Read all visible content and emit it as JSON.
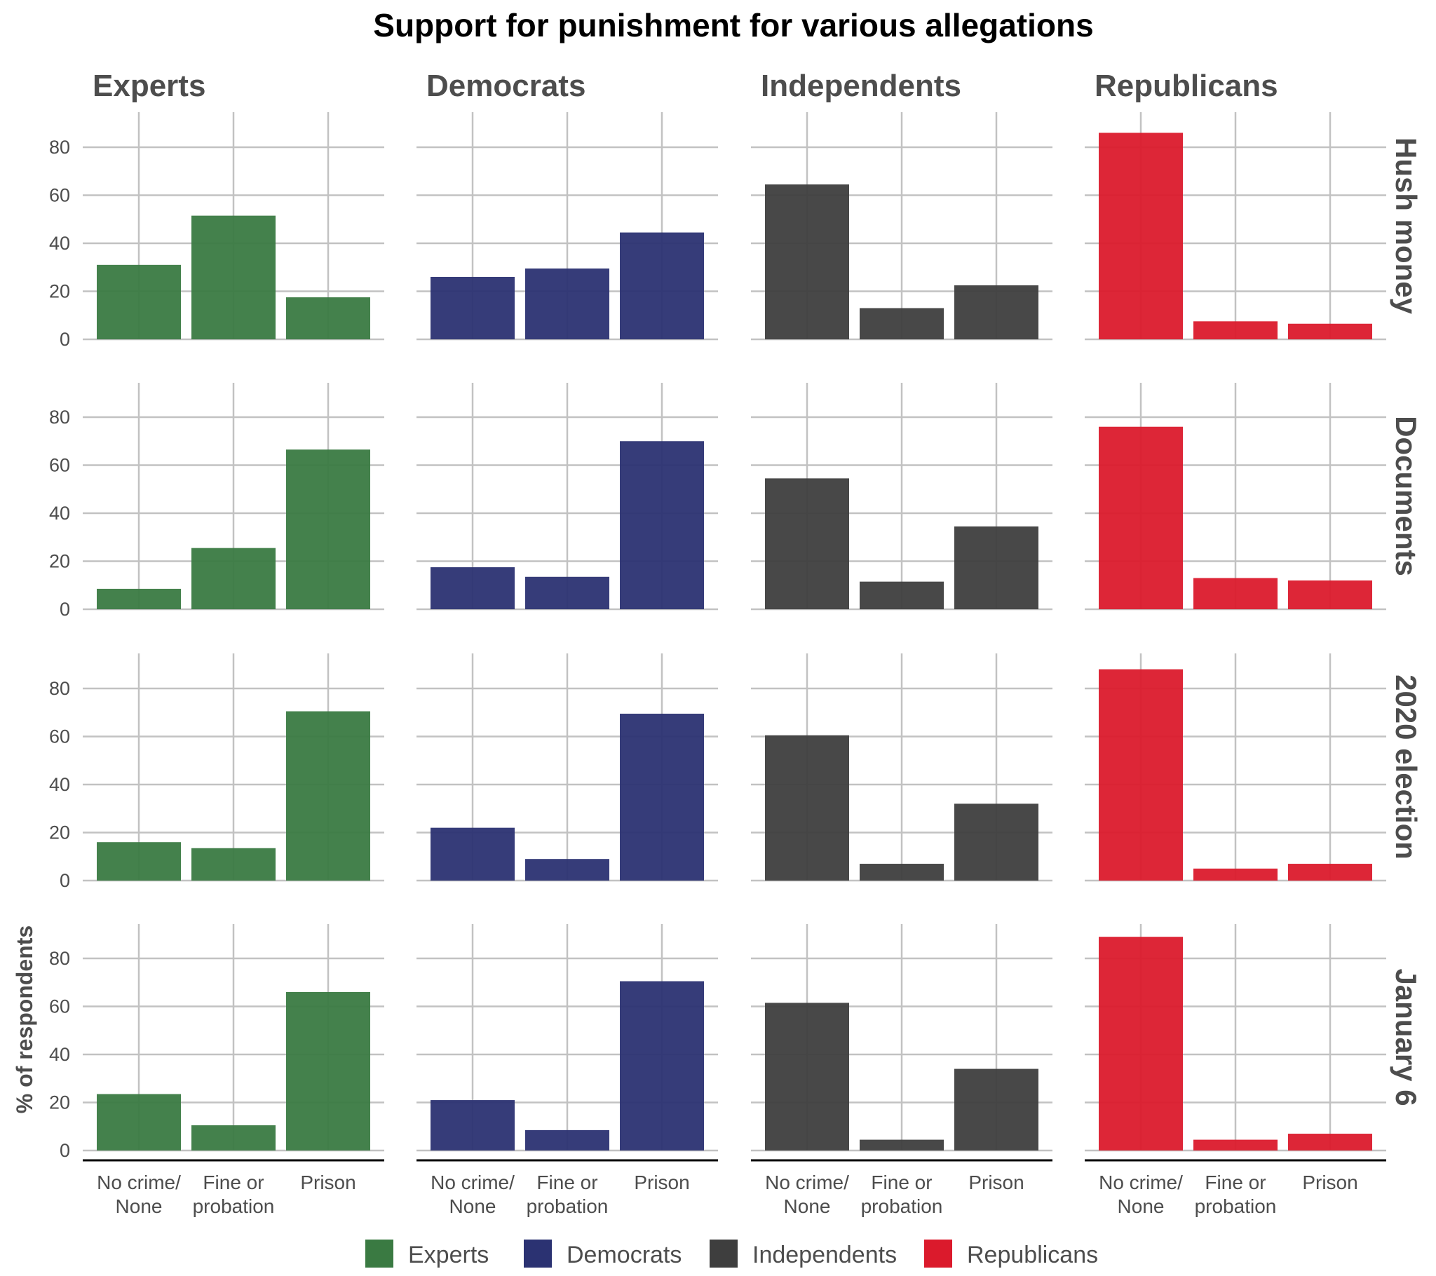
{
  "chart_data": {
    "type": "bar",
    "title": "Support for punishment for various allegations",
    "ylabel": "% of respondents",
    "xlabel": "",
    "ylim": [
      0,
      94
    ],
    "yticks": [
      0,
      20,
      40,
      60,
      80
    ],
    "grid": true,
    "legend_position": "bottom",
    "categories": [
      "No crime/\nNone",
      "Fine or\nprobation",
      "Prison"
    ],
    "groups": [
      {
        "name": "Experts",
        "color": "#3a7a42"
      },
      {
        "name": "Democrats",
        "color": "#2b3272"
      },
      {
        "name": "Independents",
        "color": "#3e3e3e"
      },
      {
        "name": "Republicans",
        "color": "#db1a2c"
      }
    ],
    "panels": [
      {
        "allegation": "Hush money",
        "values": {
          "Experts": [
            31,
            51.5,
            17.5
          ],
          "Democrats": [
            26,
            29.5,
            44.5
          ],
          "Independents": [
            64.5,
            13,
            22.5
          ],
          "Republicans": [
            86,
            7.5,
            6.5
          ]
        }
      },
      {
        "allegation": "Documents",
        "values": {
          "Experts": [
            8.5,
            25.5,
            66.5
          ],
          "Democrats": [
            17.5,
            13.5,
            70
          ],
          "Independents": [
            54.5,
            11.5,
            34.5
          ],
          "Republicans": [
            76,
            13,
            12
          ]
        }
      },
      {
        "allegation": "2020 election",
        "values": {
          "Experts": [
            16,
            13.5,
            70.5
          ],
          "Democrats": [
            22,
            9,
            69.5
          ],
          "Independents": [
            60.5,
            7,
            32
          ],
          "Republicans": [
            88,
            5,
            7
          ]
        }
      },
      {
        "allegation": "January 6",
        "values": {
          "Experts": [
            23.5,
            10.5,
            66
          ],
          "Democrats": [
            21,
            8.5,
            70.5
          ],
          "Independents": [
            61.5,
            4.5,
            34
          ],
          "Republicans": [
            89,
            4.5,
            7
          ]
        }
      }
    ]
  }
}
